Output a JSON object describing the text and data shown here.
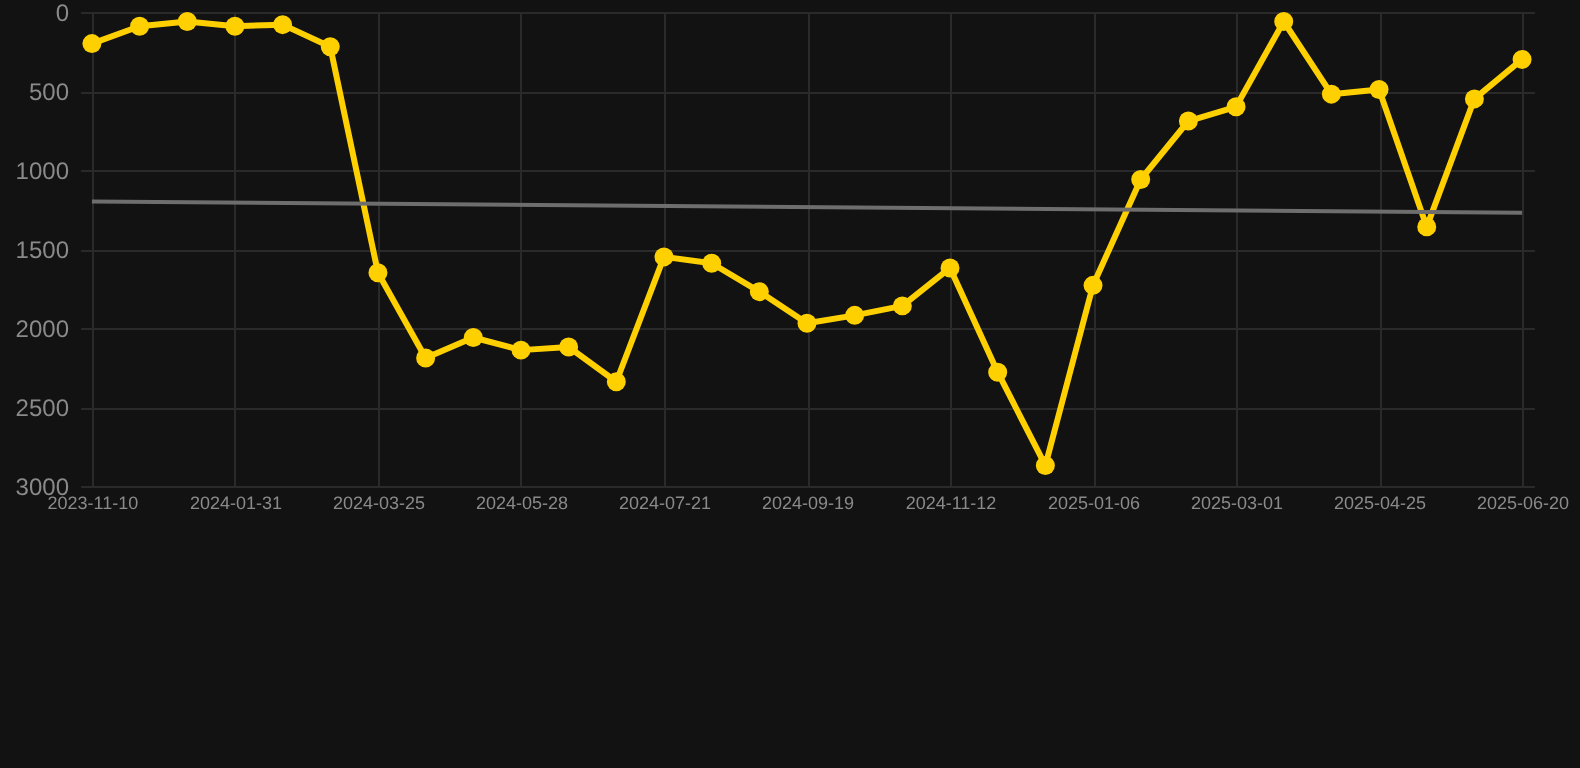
{
  "chart_data": {
    "type": "line",
    "categories": [
      "2023-11-10",
      null,
      null,
      "2024-01-31",
      null,
      null,
      "2024-03-25",
      null,
      null,
      "2024-05-28",
      null,
      null,
      "2024-07-21",
      null,
      null,
      "2024-09-19",
      null,
      null,
      "2024-11-12",
      null,
      null,
      "2025-01-06",
      null,
      null,
      "2025-03-01",
      null,
      null,
      "2025-04-25",
      null,
      null,
      "2025-06-20"
    ],
    "series": [
      {
        "color": "#ffd000",
        "values": [
          200,
          90,
          60,
          90,
          80,
          220,
          1650,
          2190,
          2060,
          2140,
          2120,
          2340,
          1550,
          1590,
          1770,
          1970,
          1920,
          1860,
          1620,
          2280,
          2870,
          1730,
          1060,
          690,
          600,
          60,
          520,
          490,
          1360,
          550,
          300
        ]
      },
      {
        "type": "line",
        "color": "#6e6e6e",
        "marker": "none",
        "values": [
          1200,
          null,
          null,
          null,
          null,
          null,
          null,
          null,
          null,
          null,
          null,
          null,
          null,
          null,
          null,
          null,
          null,
          null,
          null,
          null,
          null,
          null,
          null,
          null,
          null,
          null,
          null,
          null,
          null,
          null,
          1270
        ]
      }
    ],
    "ylim": [
      3000,
      0
    ],
    "yticks": [
      0,
      500,
      1000,
      1500,
      2000,
      2500,
      3000
    ],
    "grid": true,
    "marker": "circle"
  }
}
